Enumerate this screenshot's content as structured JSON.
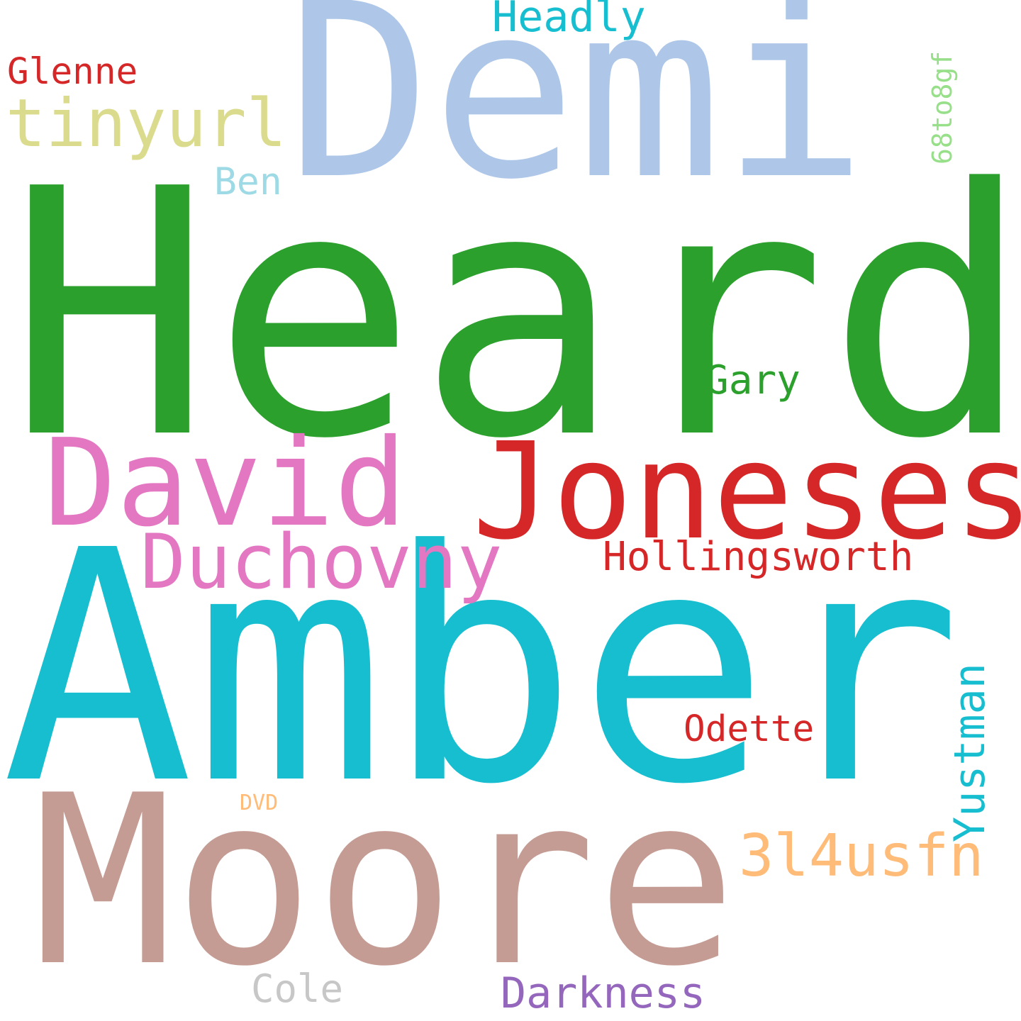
{
  "words": {
    "demi": {
      "text": "Demi",
      "color": "#aec7e8"
    },
    "heard": {
      "text": "Heard",
      "color": "#2ca02c"
    },
    "amber": {
      "text": "Amber",
      "color": "#17becf"
    },
    "moore": {
      "text": "Moore",
      "color": "#c49c94"
    },
    "joneses": {
      "text": "Joneses",
      "color": "#d62728"
    },
    "david": {
      "text": "David",
      "color": "#e377c2"
    },
    "duchovny": {
      "text": "Duchovny",
      "color": "#e377c2"
    },
    "tinyurl": {
      "text": "tinyurl",
      "color": "#dbdb8d"
    },
    "hollingsworth": {
      "text": "Hollingsworth",
      "color": "#d62728"
    },
    "gary": {
      "text": "Gary",
      "color": "#2ca02c"
    },
    "glenne": {
      "text": "Glenne",
      "color": "#d62728"
    },
    "headly": {
      "text": "Headly",
      "color": "#17becf"
    },
    "ben": {
      "text": "Ben",
      "color": "#9edae5"
    },
    "odette": {
      "text": "Odette",
      "color": "#d62728"
    },
    "usfn": {
      "text": "3l4usfn",
      "color": "#ffbb78"
    },
    "cole": {
      "text": "Cole",
      "color": "#c7c7c7"
    },
    "darkness": {
      "text": "Darkness",
      "color": "#9467bd"
    },
    "dvd": {
      "text": "DVD",
      "color": "#ffbb78"
    },
    "to8gf": {
      "text": "68to8gf",
      "color": "#98df8a"
    },
    "yustman": {
      "text": "Yustman",
      "color": "#17becf"
    }
  }
}
